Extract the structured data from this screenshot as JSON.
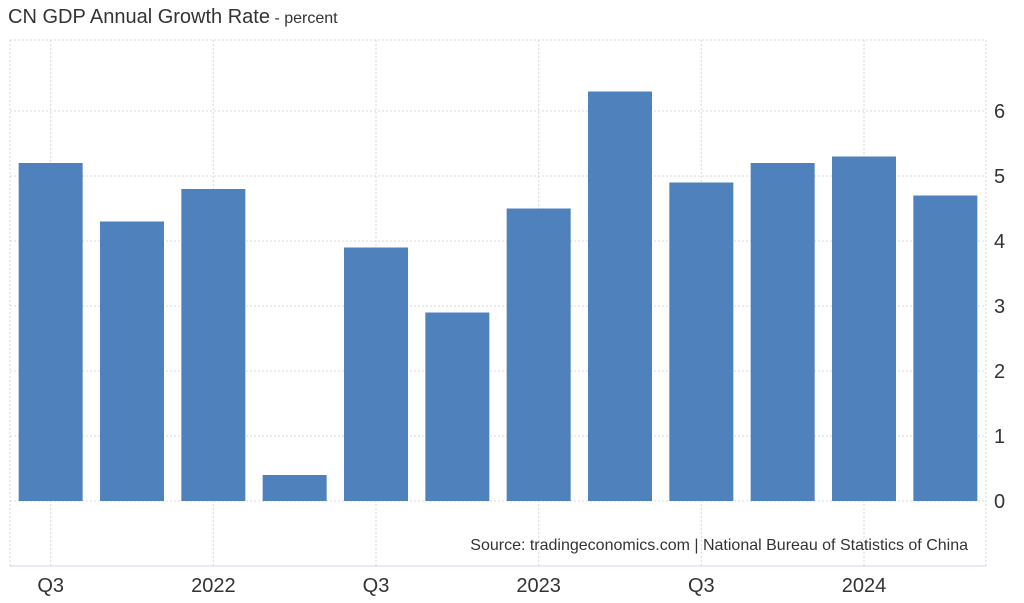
{
  "header": {
    "title": "CN GDP Annual Growth Rate",
    "subtitle": "- percent"
  },
  "source": "Source: tradingeconomics.com | National Bureau of Statistics of China",
  "colors": {
    "bar": "#4f81bd",
    "grid": "#d9d9d9",
    "axis": "#ccd6eb"
  },
  "chart_data": {
    "type": "bar",
    "title": "CN GDP Annual Growth Rate",
    "subtitle": "- percent",
    "categories": [
      "2021 Q3",
      "2021 Q4",
      "2022 Q1",
      "2022 Q2",
      "2022 Q3",
      "2022 Q4",
      "2023 Q1",
      "2023 Q2",
      "2023 Q3",
      "2023 Q4",
      "2024 Q1",
      "2024 Q2"
    ],
    "series": [
      {
        "values": [
          5.2,
          4.3,
          4.8,
          0.4,
          3.9,
          2.9,
          4.5,
          6.3,
          4.9,
          5.2,
          5.3,
          4.7
        ]
      }
    ],
    "x_tick_labels": [
      "Q3",
      "2022",
      "Q3",
      "2023",
      "Q3",
      "2024"
    ],
    "y_ticks": [
      0,
      1,
      2,
      3,
      4,
      5,
      6
    ],
    "ylim": [
      -1,
      7
    ],
    "grid": true,
    "y_axis_side": "right"
  }
}
